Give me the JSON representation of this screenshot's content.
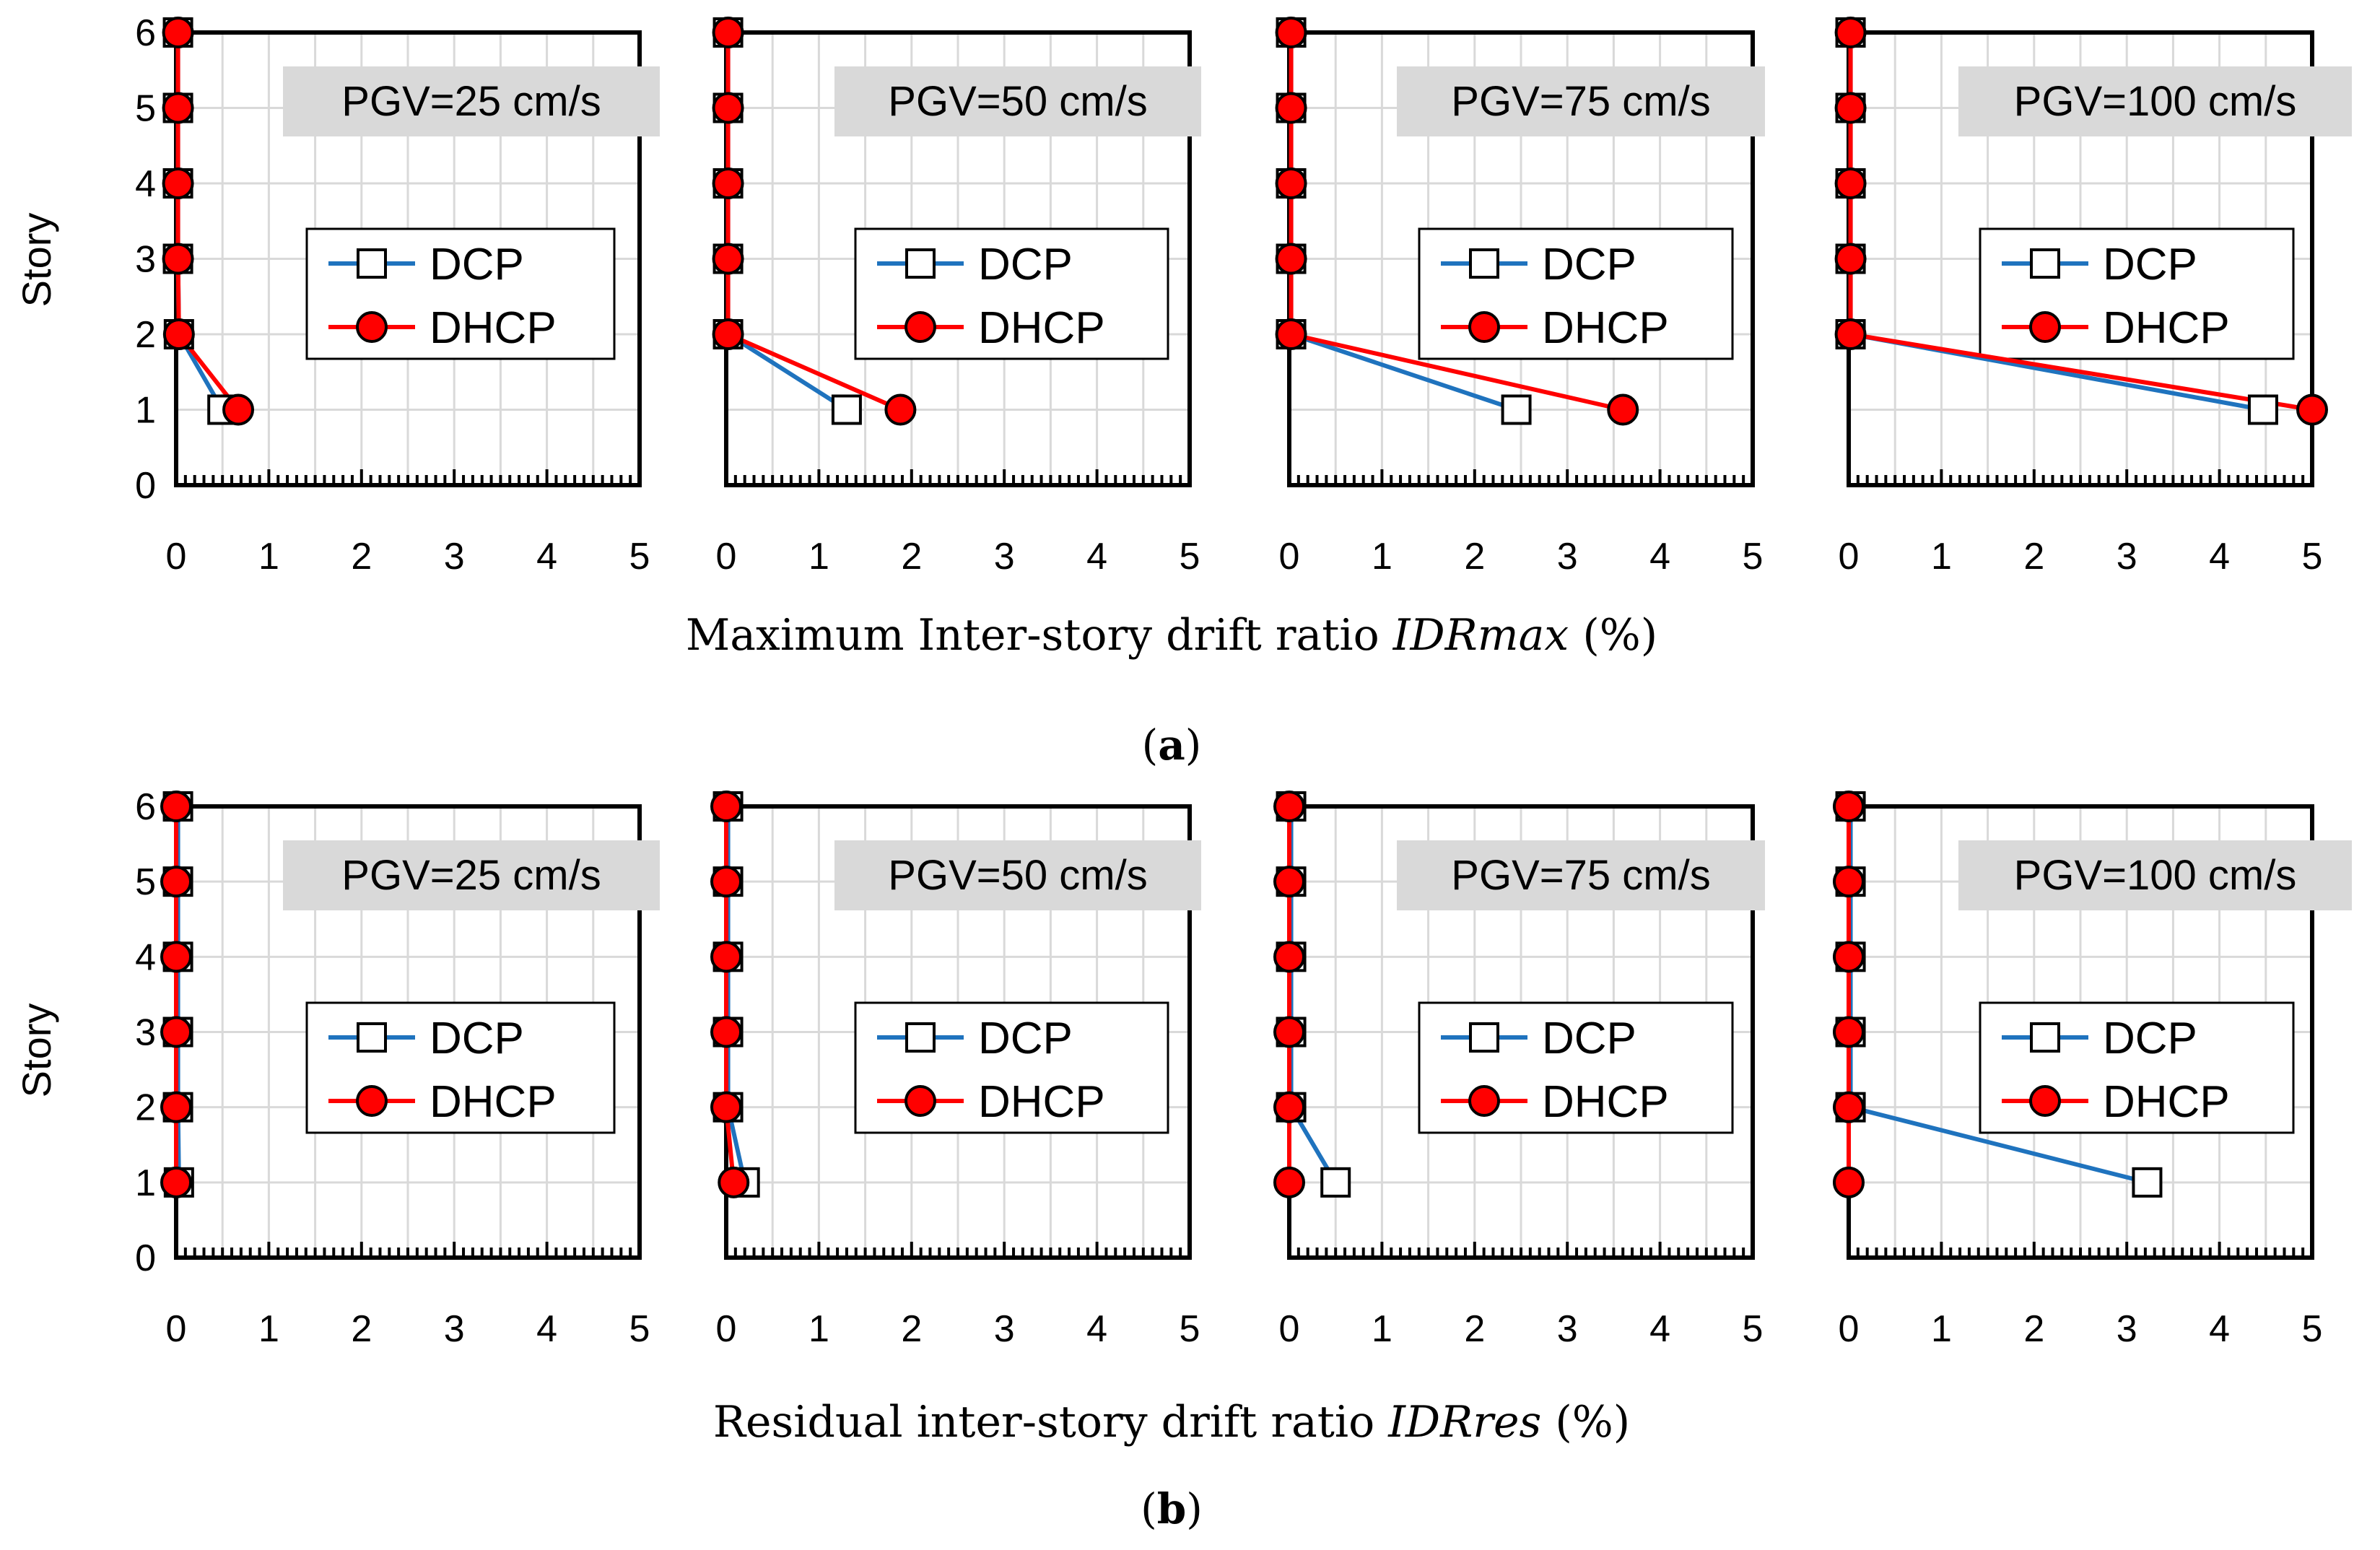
{
  "figure": {
    "panels": [
      {
        "label_open": "(",
        "label": "a",
        "label_close": ")",
        "ylabel": "Story",
        "xlabel_prefix": "Maximum Inter-story drift ratio ",
        "xlabel_var": "IDRmax",
        "xlabel_suffix": " (%)"
      },
      {
        "label_open": "(",
        "label": "b",
        "label_close": ")",
        "ylabel": "Story",
        "xlabel_prefix": "Residual inter-story drift ratio ",
        "xlabel_var": "IDRres",
        "xlabel_suffix": " (%)"
      }
    ]
  },
  "colors": {
    "DCP": "#1F73BE",
    "DHCP": "#FF0000",
    "grid": "#D9D9D9",
    "title_box": "#D9D9D9"
  },
  "chart_data": [
    {
      "type": "line",
      "panel": "a",
      "title": "PGV=25 cm/s",
      "xlim": [
        0,
        5
      ],
      "ylim": [
        0,
        6
      ],
      "xticks": [
        0,
        1,
        2,
        3,
        4,
        5
      ],
      "yticks": [
        0,
        1,
        2,
        3,
        4,
        5,
        6
      ],
      "grid": true,
      "legend_position": "center-right",
      "series": [
        {
          "name": "DCP",
          "marker": "square",
          "points": [
            [
              0.5,
              1
            ],
            [
              0.03,
              2
            ],
            [
              0.02,
              3
            ],
            [
              0.02,
              4
            ],
            [
              0.02,
              5
            ],
            [
              0.02,
              6
            ]
          ]
        },
        {
          "name": "DHCP",
          "marker": "circle",
          "points": [
            [
              0.67,
              1
            ],
            [
              0.03,
              2
            ],
            [
              0.02,
              3
            ],
            [
              0.02,
              4
            ],
            [
              0.02,
              5
            ],
            [
              0.02,
              6
            ]
          ]
        }
      ]
    },
    {
      "type": "line",
      "panel": "a",
      "title": "PGV=50 cm/s",
      "xlim": [
        0,
        5
      ],
      "ylim": [
        0,
        6
      ],
      "xticks": [
        0,
        1,
        2,
        3,
        4,
        5
      ],
      "yticks": [
        0,
        1,
        2,
        3,
        4,
        5,
        6
      ],
      "grid": true,
      "legend_position": "center-right",
      "series": [
        {
          "name": "DCP",
          "marker": "square",
          "points": [
            [
              1.3,
              1
            ],
            [
              0.02,
              2
            ],
            [
              0.02,
              3
            ],
            [
              0.02,
              4
            ],
            [
              0.02,
              5
            ],
            [
              0.02,
              6
            ]
          ]
        },
        {
          "name": "DHCP",
          "marker": "circle",
          "points": [
            [
              1.88,
              1
            ],
            [
              0.02,
              2
            ],
            [
              0.02,
              3
            ],
            [
              0.02,
              4
            ],
            [
              0.02,
              5
            ],
            [
              0.02,
              6
            ]
          ]
        }
      ]
    },
    {
      "type": "line",
      "panel": "a",
      "title": "PGV=75 cm/s",
      "xlim": [
        0,
        5
      ],
      "ylim": [
        0,
        6
      ],
      "xticks": [
        0,
        1,
        2,
        3,
        4,
        5
      ],
      "yticks": [
        0,
        1,
        2,
        3,
        4,
        5,
        6
      ],
      "grid": true,
      "legend_position": "center-right",
      "series": [
        {
          "name": "DCP",
          "marker": "square",
          "points": [
            [
              2.45,
              1
            ],
            [
              0.02,
              2
            ],
            [
              0.02,
              3
            ],
            [
              0.02,
              4
            ],
            [
              0.02,
              5
            ],
            [
              0.02,
              6
            ]
          ]
        },
        {
          "name": "DHCP",
          "marker": "circle",
          "points": [
            [
              3.6,
              1
            ],
            [
              0.02,
              2
            ],
            [
              0.02,
              3
            ],
            [
              0.02,
              4
            ],
            [
              0.02,
              5
            ],
            [
              0.02,
              6
            ]
          ]
        }
      ]
    },
    {
      "type": "line",
      "panel": "a",
      "title": "PGV=100 cm/s",
      "xlim": [
        0,
        5
      ],
      "ylim": [
        0,
        6
      ],
      "xticks": [
        0,
        1,
        2,
        3,
        4,
        5
      ],
      "yticks": [
        0,
        1,
        2,
        3,
        4,
        5,
        6
      ],
      "grid": true,
      "legend_position": "center-right",
      "series": [
        {
          "name": "DCP",
          "marker": "square",
          "points": [
            [
              4.47,
              1
            ],
            [
              0.02,
              2
            ],
            [
              0.02,
              3
            ],
            [
              0.02,
              4
            ],
            [
              0.02,
              5
            ],
            [
              0.02,
              6
            ]
          ]
        },
        {
          "name": "DHCP",
          "marker": "circle",
          "points": [
            [
              5.0,
              1
            ],
            [
              0.02,
              2
            ],
            [
              0.02,
              3
            ],
            [
              0.02,
              4
            ],
            [
              0.02,
              5
            ],
            [
              0.02,
              6
            ]
          ]
        }
      ]
    },
    {
      "type": "line",
      "panel": "b",
      "title": "PGV=25 cm/s",
      "xlim": [
        0,
        5
      ],
      "ylim": [
        0,
        6
      ],
      "xticks": [
        0,
        1,
        2,
        3,
        4,
        5
      ],
      "yticks": [
        0,
        1,
        2,
        3,
        4,
        5,
        6
      ],
      "grid": true,
      "legend_position": "center-right",
      "series": [
        {
          "name": "DCP",
          "marker": "square",
          "points": [
            [
              0.03,
              1
            ],
            [
              0.02,
              2
            ],
            [
              0.02,
              3
            ],
            [
              0.02,
              4
            ],
            [
              0.02,
              5
            ],
            [
              0.02,
              6
            ]
          ]
        },
        {
          "name": "DHCP",
          "marker": "circle",
          "points": [
            [
              0.0,
              1
            ],
            [
              0.0,
              2
            ],
            [
              0.0,
              3
            ],
            [
              0.0,
              4
            ],
            [
              0.0,
              5
            ],
            [
              0.0,
              6
            ]
          ]
        }
      ]
    },
    {
      "type": "line",
      "panel": "b",
      "title": "PGV=50 cm/s",
      "xlim": [
        0,
        5
      ],
      "ylim": [
        0,
        6
      ],
      "xticks": [
        0,
        1,
        2,
        3,
        4,
        5
      ],
      "yticks": [
        0,
        1,
        2,
        3,
        4,
        5,
        6
      ],
      "grid": true,
      "legend_position": "center-right",
      "series": [
        {
          "name": "DCP",
          "marker": "square",
          "points": [
            [
              0.2,
              1
            ],
            [
              0.02,
              2
            ],
            [
              0.02,
              3
            ],
            [
              0.02,
              4
            ],
            [
              0.02,
              5
            ],
            [
              0.02,
              6
            ]
          ]
        },
        {
          "name": "DHCP",
          "marker": "circle",
          "points": [
            [
              0.08,
              1
            ],
            [
              0.0,
              2
            ],
            [
              0.0,
              3
            ],
            [
              0.0,
              4
            ],
            [
              0.0,
              5
            ],
            [
              0.0,
              6
            ]
          ]
        }
      ]
    },
    {
      "type": "line",
      "panel": "b",
      "title": "PGV=75 cm/s",
      "xlim": [
        0,
        5
      ],
      "ylim": [
        0,
        6
      ],
      "xticks": [
        0,
        1,
        2,
        3,
        4,
        5
      ],
      "yticks": [
        0,
        1,
        2,
        3,
        4,
        5,
        6
      ],
      "grid": true,
      "legend_position": "center-right",
      "series": [
        {
          "name": "DCP",
          "marker": "square",
          "points": [
            [
              0.5,
              1
            ],
            [
              0.02,
              2
            ],
            [
              0.02,
              3
            ],
            [
              0.02,
              4
            ],
            [
              0.02,
              5
            ],
            [
              0.02,
              6
            ]
          ]
        },
        {
          "name": "DHCP",
          "marker": "circle",
          "points": [
            [
              0.0,
              1
            ],
            [
              0.0,
              2
            ],
            [
              0.0,
              3
            ],
            [
              0.0,
              4
            ],
            [
              0.0,
              5
            ],
            [
              0.0,
              6
            ]
          ]
        }
      ]
    },
    {
      "type": "line",
      "panel": "b",
      "title": "PGV=100 cm/s",
      "xlim": [
        0,
        5
      ],
      "ylim": [
        0,
        6
      ],
      "xticks": [
        0,
        1,
        2,
        3,
        4,
        5
      ],
      "yticks": [
        0,
        1,
        2,
        3,
        4,
        5,
        6
      ],
      "grid": true,
      "legend_position": "center-right",
      "series": [
        {
          "name": "DCP",
          "marker": "square",
          "points": [
            [
              3.22,
              1
            ],
            [
              0.02,
              2
            ],
            [
              0.02,
              3
            ],
            [
              0.02,
              4
            ],
            [
              0.02,
              5
            ],
            [
              0.02,
              6
            ]
          ]
        },
        {
          "name": "DHCP",
          "marker": "circle",
          "points": [
            [
              0.0,
              1
            ],
            [
              0.0,
              2
            ],
            [
              0.0,
              3
            ],
            [
              0.0,
              4
            ],
            [
              0.0,
              5
            ],
            [
              0.0,
              6
            ]
          ]
        }
      ]
    }
  ]
}
